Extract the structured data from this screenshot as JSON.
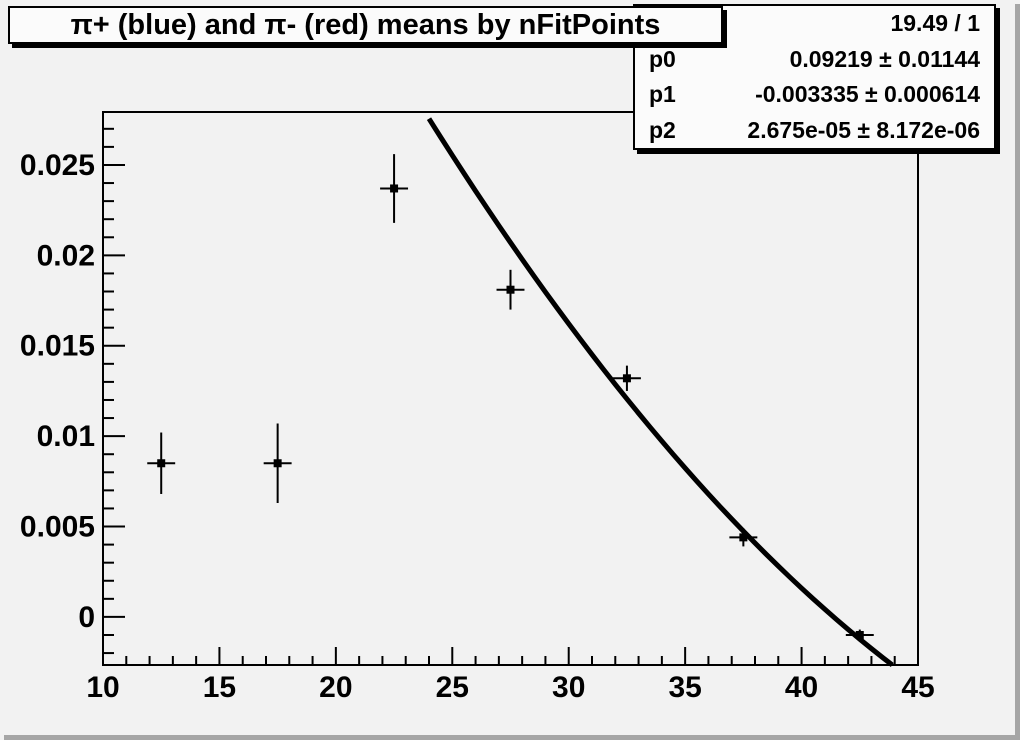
{
  "title": "π+ (blue) and π- (red) means by nFitPoints",
  "stats": {
    "rows": [
      {
        "label": "",
        "value": "19.49 / 1"
      },
      {
        "label": "p0",
        "value": "0.09219 ± 0.01144"
      },
      {
        "label": "p1",
        "value": "-0.003335 ± 0.000614"
      },
      {
        "label": "p2",
        "value": "2.675e-05 ± 8.172e-06"
      }
    ]
  },
  "colors": {
    "canvas_bg": "#f2f2f2",
    "box_bg": "#fbfbfb",
    "foreground": "#000000",
    "canvas_edge": "#a6a6a6"
  },
  "chart_data": {
    "type": "scatter",
    "title": "π+ (blue) and π- (red) means by nFitPoints",
    "xlabel": "",
    "ylabel": "",
    "xlim": [
      10,
      45
    ],
    "ylim": [
      -0.00266,
      0.02793
    ],
    "grid": false,
    "legend": "none",
    "x_major_ticks": [
      10,
      15,
      20,
      25,
      30,
      35,
      40,
      45
    ],
    "x_minor_step": 1,
    "y_major_ticks": [
      0,
      0.005,
      0.01,
      0.015,
      0.02,
      0.025
    ],
    "y_tick_labels": [
      "0",
      "0.005",
      "0.01",
      "0.015",
      "0.02",
      "0.025"
    ],
    "y_minor_step": 0.001,
    "series": [
      {
        "name": "pion means by nFitPoints",
        "marker": "filled-square",
        "color": "#000000",
        "points": [
          {
            "x": 12.5,
            "y": 0.0085,
            "ex": 0.6,
            "ey": 0.0017
          },
          {
            "x": 17.5,
            "y": 0.0085,
            "ex": 0.6,
            "ey": 0.0022
          },
          {
            "x": 22.5,
            "y": 0.0237,
            "ex": 0.6,
            "ey": 0.0019
          },
          {
            "x": 27.5,
            "y": 0.0181,
            "ex": 0.6,
            "ey": 0.0011
          },
          {
            "x": 32.5,
            "y": 0.0132,
            "ex": 0.6,
            "ey": 0.0007
          },
          {
            "x": 37.5,
            "y": 0.0044,
            "ex": 0.6,
            "ey": 0.0005
          },
          {
            "x": 42.5,
            "y": -0.001,
            "ex": 0.6,
            "ey": 0.0003
          }
        ]
      }
    ],
    "fit": {
      "type": "quadratic",
      "formula": "p0 + p1*x + p2*x^2",
      "p0": 0.09219,
      "p1": -0.003335,
      "p2": 2.675e-05,
      "chi2_over_ndf": "19.49 / 1",
      "x_range": [
        24.0,
        44.0
      ],
      "color": "#000000"
    }
  }
}
